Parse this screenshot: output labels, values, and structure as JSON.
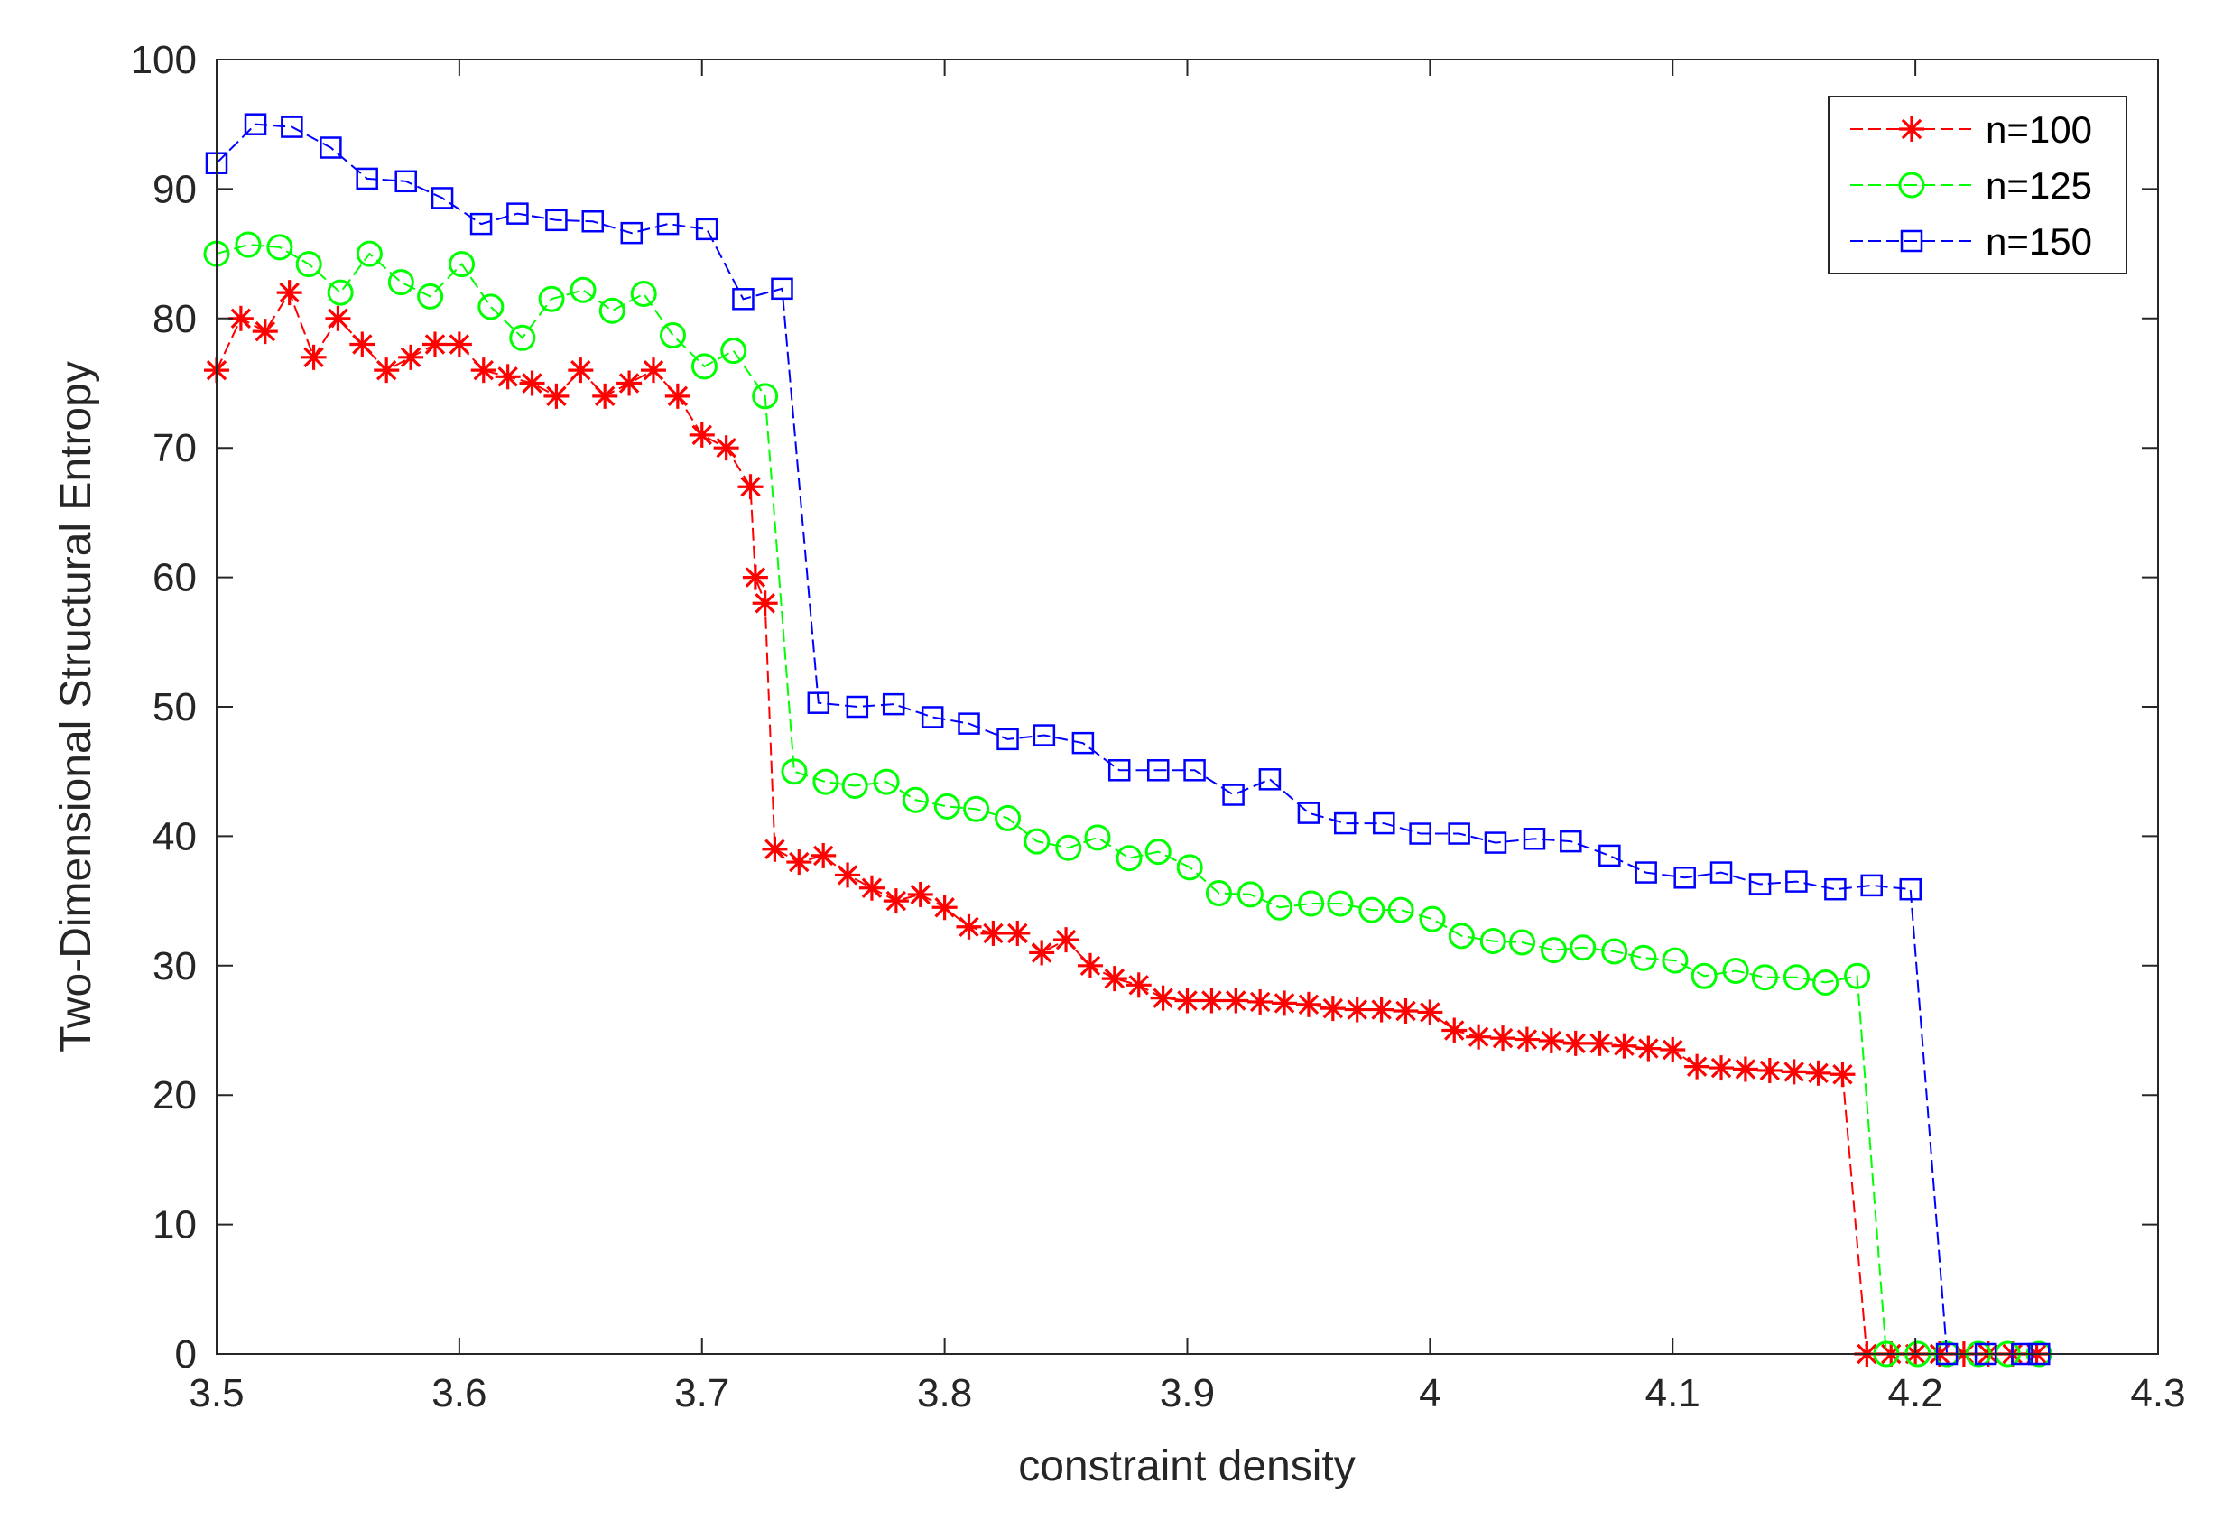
{
  "chart_data": {
    "type": "line",
    "title": "",
    "xlabel": "constraint density",
    "ylabel": "Two-Dimensional Structural Entropy",
    "xlim": [
      3.5,
      4.3
    ],
    "ylim": [
      0,
      100
    ],
    "xticks": [
      3.5,
      3.6,
      3.7,
      3.8,
      3.9,
      4.0,
      4.1,
      4.2,
      4.3
    ],
    "xtick_labels": [
      "3.5",
      "3.6",
      "3.7",
      "3.8",
      "3.9",
      "4",
      "4.1",
      "4.2",
      "4.3"
    ],
    "yticks": [
      0,
      10,
      20,
      30,
      40,
      50,
      60,
      70,
      80,
      90,
      100
    ],
    "ytick_labels": [
      "0",
      "10",
      "20",
      "30",
      "40",
      "50",
      "60",
      "70",
      "80",
      "90",
      "100"
    ],
    "grid": false,
    "legend_position": "top-right",
    "series": [
      {
        "name": "n=100",
        "color": "#ff0000",
        "marker": "asterisk",
        "x": [
          3.5,
          3.51,
          3.52,
          3.53,
          3.54,
          3.55,
          3.56,
          3.57,
          3.58,
          3.59,
          3.6,
          3.61,
          3.62,
          3.63,
          3.64,
          3.65,
          3.66,
          3.67,
          3.68,
          3.69,
          3.7,
          3.71,
          3.72,
          3.722,
          3.726,
          3.73,
          3.74,
          3.75,
          3.76,
          3.77,
          3.78,
          3.79,
          3.8,
          3.81,
          3.82,
          3.83,
          3.84,
          3.85,
          3.86,
          3.87,
          3.88,
          3.89,
          3.9,
          3.91,
          3.92,
          3.93,
          3.94,
          3.95,
          3.96,
          3.97,
          3.98,
          3.99,
          4.0,
          4.01,
          4.02,
          4.03,
          4.04,
          4.05,
          4.06,
          4.07,
          4.08,
          4.09,
          4.1,
          4.11,
          4.12,
          4.13,
          4.14,
          4.15,
          4.16,
          4.17,
          4.18,
          4.19,
          4.2,
          4.21,
          4.22,
          4.23,
          4.24,
          4.25
        ],
        "y": [
          76,
          80,
          79,
          82,
          77,
          80,
          78,
          76,
          77,
          78,
          78,
          76,
          75.5,
          75,
          74,
          76,
          74,
          75,
          76,
          74,
          71,
          70,
          67,
          60,
          58,
          39,
          38,
          38.5,
          37,
          36,
          35,
          35.5,
          34.5,
          33,
          32.5,
          32.5,
          31,
          32,
          30,
          29,
          28.5,
          27.5,
          27.3,
          27.3,
          27.3,
          27.2,
          27.1,
          27.0,
          26.7,
          26.6,
          26.6,
          26.5,
          26.4,
          25,
          24.5,
          24.4,
          24.3,
          24.2,
          24.0,
          24.0,
          23.8,
          23.6,
          23.5,
          22.2,
          22.1,
          22.0,
          21.9,
          21.8,
          21.7,
          21.6,
          0,
          0,
          0,
          0,
          0,
          0,
          0,
          0
        ]
      },
      {
        "name": "n=125",
        "color": "#00ff00",
        "marker": "circle",
        "x": [
          3.5,
          3.513,
          3.526,
          3.538,
          3.551,
          3.563,
          3.576,
          3.588,
          3.601,
          3.613,
          3.626,
          3.638,
          3.651,
          3.663,
          3.676,
          3.688,
          3.701,
          3.713,
          3.726,
          3.738,
          3.751,
          3.763,
          3.776,
          3.788,
          3.801,
          3.813,
          3.826,
          3.838,
          3.851,
          3.863,
          3.876,
          3.888,
          3.901,
          3.913,
          3.926,
          3.938,
          3.951,
          3.963,
          3.976,
          3.988,
          4.001,
          4.013,
          4.026,
          4.038,
          4.051,
          4.063,
          4.076,
          4.088,
          4.101,
          4.113,
          4.126,
          4.138,
          4.151,
          4.163,
          4.176,
          4.188,
          4.201,
          4.213,
          4.226,
          4.238,
          4.251
        ],
        "y": [
          85,
          85.7,
          85.5,
          84.2,
          82,
          85,
          82.8,
          81.7,
          84.2,
          80.9,
          78.5,
          81.5,
          82.2,
          80.6,
          81.9,
          78.7,
          76.3,
          77.5,
          74,
          45,
          44.2,
          43.9,
          44.2,
          42.8,
          42.3,
          42.1,
          41.4,
          39.6,
          39.1,
          39.9,
          38.3,
          38.8,
          37.6,
          35.6,
          35.5,
          34.5,
          34.8,
          34.8,
          34.3,
          34.3,
          33.6,
          32.3,
          31.9,
          31.8,
          31.2,
          31.4,
          31.1,
          30.6,
          30.4,
          29.2,
          29.6,
          29.1,
          29.1,
          28.7,
          29.2,
          0,
          0,
          0,
          0,
          0,
          0
        ]
      },
      {
        "name": "n=150",
        "color": "#0000ff",
        "marker": "square",
        "x": [
          3.5,
          3.516,
          3.531,
          3.547,
          3.562,
          3.578,
          3.593,
          3.609,
          3.624,
          3.64,
          3.655,
          3.671,
          3.686,
          3.702,
          3.717,
          3.733,
          3.748,
          3.764,
          3.779,
          3.795,
          3.81,
          3.826,
          3.841,
          3.857,
          3.872,
          3.888,
          3.903,
          3.919,
          3.934,
          3.95,
          3.965,
          3.981,
          3.996,
          4.012,
          4.027,
          4.043,
          4.058,
          4.074,
          4.089,
          4.105,
          4.12,
          4.136,
          4.151,
          4.167,
          4.182,
          4.198,
          4.213,
          4.229,
          4.244,
          4.251
        ],
        "y": [
          92,
          95,
          94.8,
          93.2,
          90.8,
          90.6,
          89.3,
          87.3,
          88.1,
          87.6,
          87.5,
          86.6,
          87.3,
          86.9,
          81.5,
          82.3,
          50.3,
          50.0,
          50.2,
          49.2,
          48.7,
          47.5,
          47.8,
          47.2,
          45.1,
          45.1,
          45.1,
          43.2,
          44.4,
          41.8,
          41.0,
          41.0,
          40.2,
          40.2,
          39.5,
          39.8,
          39.6,
          38.5,
          37.2,
          36.8,
          37.2,
          36.3,
          36.5,
          35.9,
          36.2,
          35.9,
          0,
          0,
          0,
          0
        ]
      }
    ]
  }
}
